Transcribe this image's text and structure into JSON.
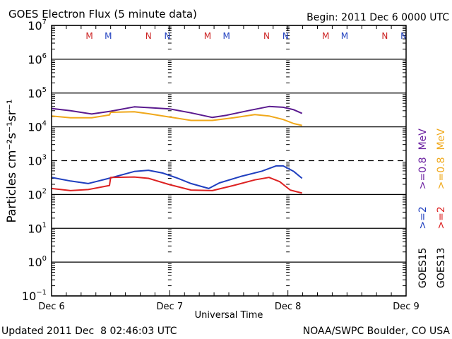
{
  "chart_data": {
    "type": "line",
    "title": "GOES Electron Flux (5 minute data)",
    "begin_label": "Begin: 2011 Dec 6 0000 UTC",
    "xlabel": "Universal Time",
    "ylabel": "Particles cm⁻²s⁻¹sr⁻¹",
    "x_unit": "days since 2011 Dec 6 0000 UTC",
    "xlim": [
      0,
      3
    ],
    "x_ticks": [
      {
        "value": 0,
        "label": "Dec 6"
      },
      {
        "value": 1,
        "label": "Dec 7"
      },
      {
        "value": 2,
        "label": "Dec 8"
      },
      {
        "value": 3,
        "label": "Dec 9"
      }
    ],
    "yscale": "log",
    "ylim": [
      0.1,
      10000000
    ],
    "y_ticks": [
      {
        "exp": 7,
        "label": "10",
        "sup": "7"
      },
      {
        "exp": 6,
        "label": "10",
        "sup": "6"
      },
      {
        "exp": 5,
        "label": "10",
        "sup": "5"
      },
      {
        "exp": 4,
        "label": "10",
        "sup": "4"
      },
      {
        "exp": 3,
        "label": "10",
        "sup": "3"
      },
      {
        "exp": 2,
        "label": "10",
        "sup": "2"
      },
      {
        "exp": 1,
        "label": "10",
        "sup": "1"
      },
      {
        "exp": 0,
        "label": "10",
        "sup": "0"
      },
      {
        "exp": -1,
        "label": "10",
        "sup": "−1"
      }
    ],
    "grid": "horizontal at decades",
    "threshold_line": {
      "value": 1000,
      "style": "dashed"
    },
    "mn_markers": [
      {
        "t": 0.32,
        "label": "M",
        "color": "#cc2222"
      },
      {
        "t": 0.48,
        "label": "M",
        "color": "#1f3fbf"
      },
      {
        "t": 0.82,
        "label": "N",
        "color": "#cc2222"
      },
      {
        "t": 0.98,
        "label": "N",
        "color": "#1f3fbf"
      },
      {
        "t": 1.32,
        "label": "M",
        "color": "#cc2222"
      },
      {
        "t": 1.48,
        "label": "M",
        "color": "#1f3fbf"
      },
      {
        "t": 1.82,
        "label": "N",
        "color": "#cc2222"
      },
      {
        "t": 1.98,
        "label": "N",
        "color": "#1f3fbf"
      },
      {
        "t": 2.32,
        "label": "M",
        "color": "#cc2222"
      },
      {
        "t": 2.48,
        "label": "M",
        "color": "#1f3fbf"
      },
      {
        "t": 2.82,
        "label": "N",
        "color": "#cc2222"
      },
      {
        "t": 2.98,
        "label": "N",
        "color": "#1f3fbf"
      }
    ],
    "legend_position": "right, vertical",
    "legend": [
      {
        "satellite": "GOES15",
        "entries": [
          {
            "label": ">=2",
            "color": "#1f3fbf"
          },
          {
            "label": ">=0.8",
            "color": "#6a1fa0"
          }
        ],
        "unit": "MeV"
      },
      {
        "satellite": "GOES13",
        "entries": [
          {
            "label": ">=2",
            "color": "#dd2222"
          },
          {
            "label": ">=0.8",
            "color": "#f0a81a"
          }
        ],
        "unit": "MeV"
      }
    ],
    "series": [
      {
        "name": "GOES15 >=0.8 MeV",
        "color": "#5a1a8f",
        "t": [
          0.0,
          0.16,
          0.34,
          0.5,
          0.7,
          0.82,
          1.0,
          1.18,
          1.36,
          1.48,
          1.66,
          1.84,
          1.96,
          2.05,
          2.12
        ],
        "values": [
          35000,
          30000,
          24000,
          29000,
          39000,
          37000,
          34000,
          26000,
          19000,
          22000,
          30000,
          40000,
          38000,
          32000,
          25000
        ]
      },
      {
        "name": "GOES13 >=0.8 MeV",
        "color": "#f0a81a",
        "t": [
          0.0,
          0.16,
          0.34,
          0.49,
          0.5,
          0.7,
          0.82,
          1.0,
          1.18,
          1.36,
          1.54,
          1.72,
          1.84,
          1.96,
          2.05,
          2.12
        ],
        "values": [
          21000,
          18500,
          18500,
          22500,
          27000,
          28000,
          24500,
          19500,
          15500,
          15500,
          18500,
          23000,
          21000,
          16500,
          12500,
          11000
        ]
      },
      {
        "name": "GOES15 >=2 MeV",
        "color": "#1f3fbf",
        "t": [
          0.0,
          0.16,
          0.31,
          0.5,
          0.7,
          0.82,
          0.94,
          1.06,
          1.18,
          1.33,
          1.42,
          1.6,
          1.78,
          1.9,
          1.96,
          2.05,
          2.12
        ],
        "values": [
          320,
          250,
          210,
          310,
          480,
          520,
          430,
          310,
          210,
          150,
          220,
          340,
          490,
          700,
          700,
          480,
          300
        ]
      },
      {
        "name": "GOES13 >=2 MeV",
        "color": "#dd2222",
        "t": [
          0.0,
          0.16,
          0.31,
          0.49,
          0.5,
          0.7,
          0.82,
          1.0,
          1.18,
          1.36,
          1.54,
          1.72,
          1.84,
          1.93,
          2.02,
          2.12
        ],
        "values": [
          150,
          130,
          140,
          185,
          320,
          330,
          300,
          195,
          135,
          130,
          185,
          270,
          320,
          240,
          135,
          110
        ]
      }
    ]
  },
  "footer": {
    "updated": "Updated 2011 Dec  8 02:46:03 UTC",
    "source": "NOAA/SWPC Boulder, CO USA"
  }
}
